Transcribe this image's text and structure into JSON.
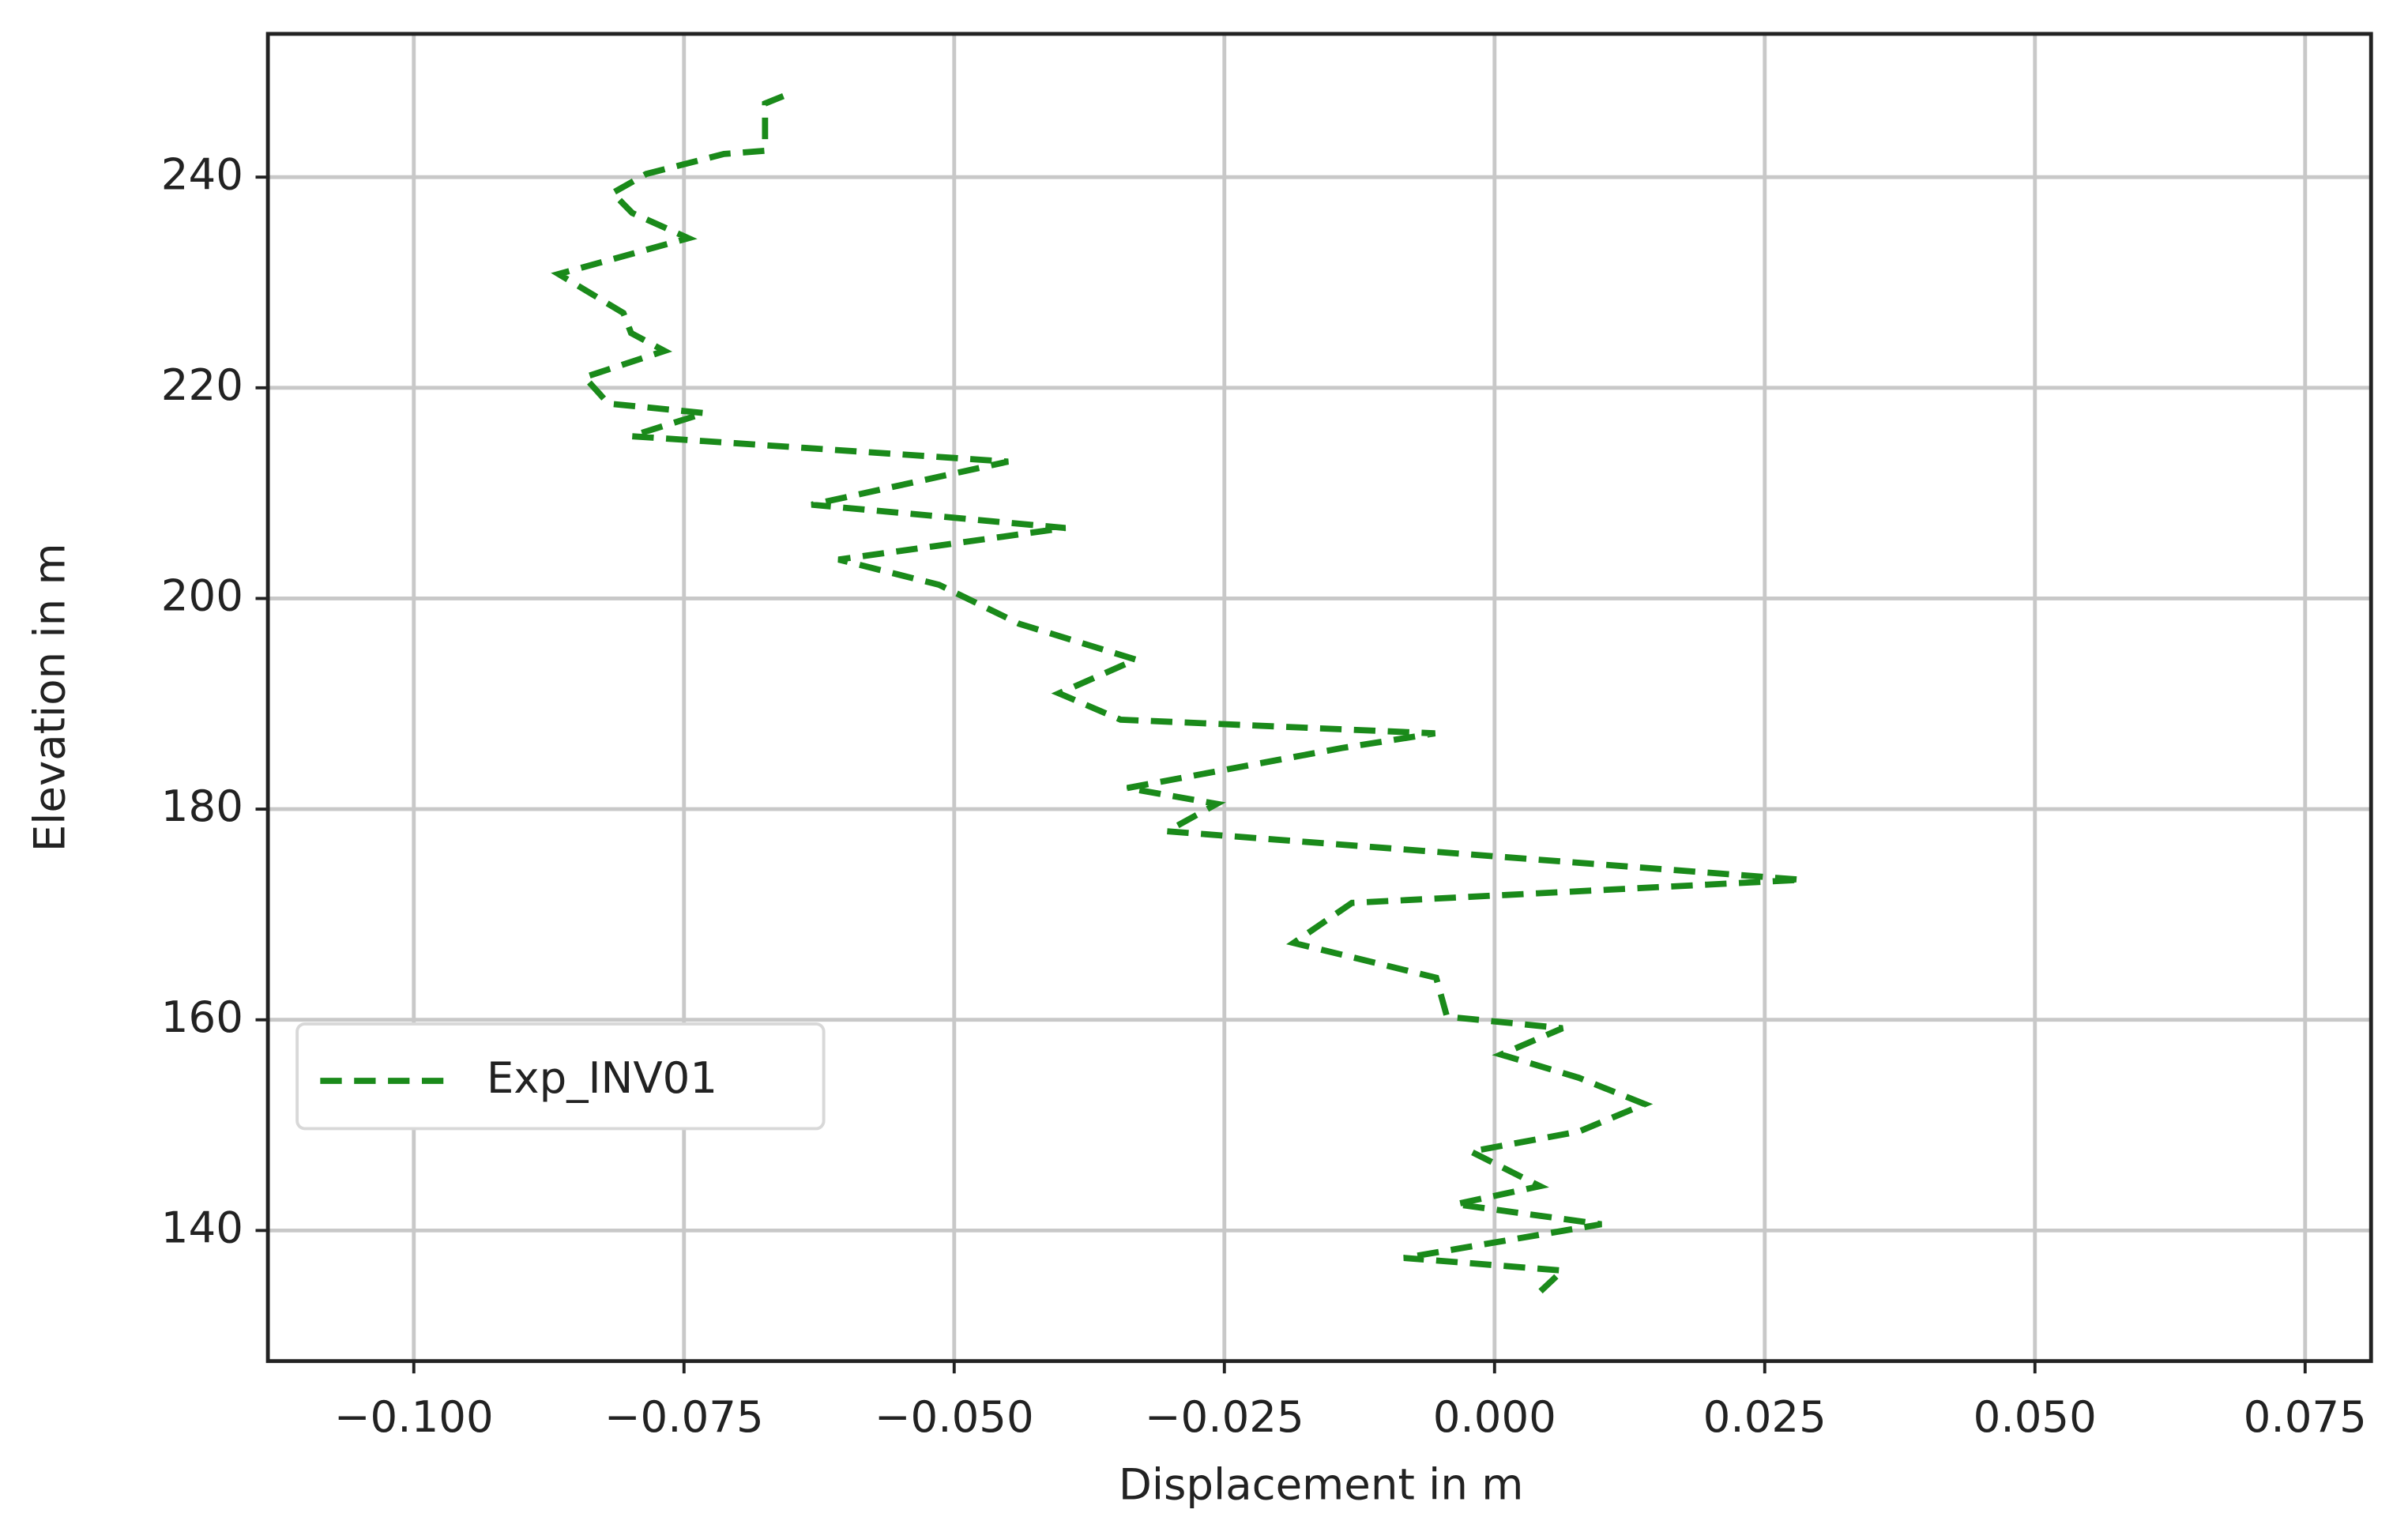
{
  "chart_data": {
    "type": "line",
    "xlabel": "Displacement in m",
    "ylabel": "Elevation in m",
    "xlim": [
      -0.1135,
      0.0811
    ],
    "ylim": [
      127.6,
      253.6
    ],
    "xticks": [
      {
        "value": -0.1,
        "label": "−0.100"
      },
      {
        "value": -0.075,
        "label": "−0.075"
      },
      {
        "value": -0.05,
        "label": "−0.050"
      },
      {
        "value": -0.025,
        "label": "−0.025"
      },
      {
        "value": 0,
        "label": "0.000"
      },
      {
        "value": 0.025,
        "label": "0.025"
      },
      {
        "value": 0.05,
        "label": "0.050"
      },
      {
        "value": 0.075,
        "label": "0.075"
      }
    ],
    "yticks": [
      140,
      160,
      180,
      200,
      220,
      240
    ],
    "grid": true,
    "legend": "center left",
    "series": [
      {
        "name": "Exp_INV01",
        "color": "#1a8a1a",
        "dash": true,
        "x": [
          -0.0658,
          -0.0675,
          -0.0675,
          -0.0713,
          -0.0785,
          -0.0816,
          -0.0798,
          -0.0746,
          -0.0866,
          -0.0806,
          -0.0799,
          -0.0768,
          -0.0842,
          -0.082,
          -0.0731,
          -0.0799,
          -0.045,
          -0.0632,
          -0.0397,
          -0.0607,
          -0.0514,
          -0.044,
          -0.0332,
          -0.0403,
          -0.0346,
          -0.0055,
          -0.0141,
          -0.034,
          -0.0257,
          -0.0303,
          0.0284,
          -0.0132,
          -0.0186,
          -0.0054,
          -0.0044,
          0.0063,
          0.0006,
          0.0078,
          0.0139,
          0.0078,
          -0.0022,
          0.0042,
          -0.0036,
          0.0099,
          -0.0084,
          0.0063,
          0.0035
        ],
        "values": [
          247.7,
          247,
          242.5,
          242.2,
          240.3,
          238.5,
          236.6,
          234.2,
          230.8,
          227.1,
          225.2,
          223.5,
          221,
          218.5,
          217.6,
          215.4,
          213,
          208.9,
          206.7,
          203.7,
          201.3,
          197.6,
          194.2,
          191,
          188.5,
          187.2,
          185.8,
          182,
          180.5,
          177.9,
          173.3,
          171.1,
          167.3,
          164,
          160.3,
          159.2,
          156.7,
          154.5,
          152,
          149.4,
          147.5,
          144.2,
          142.5,
          140.6,
          137.4,
          136.2,
          133.5
        ]
      }
    ]
  }
}
